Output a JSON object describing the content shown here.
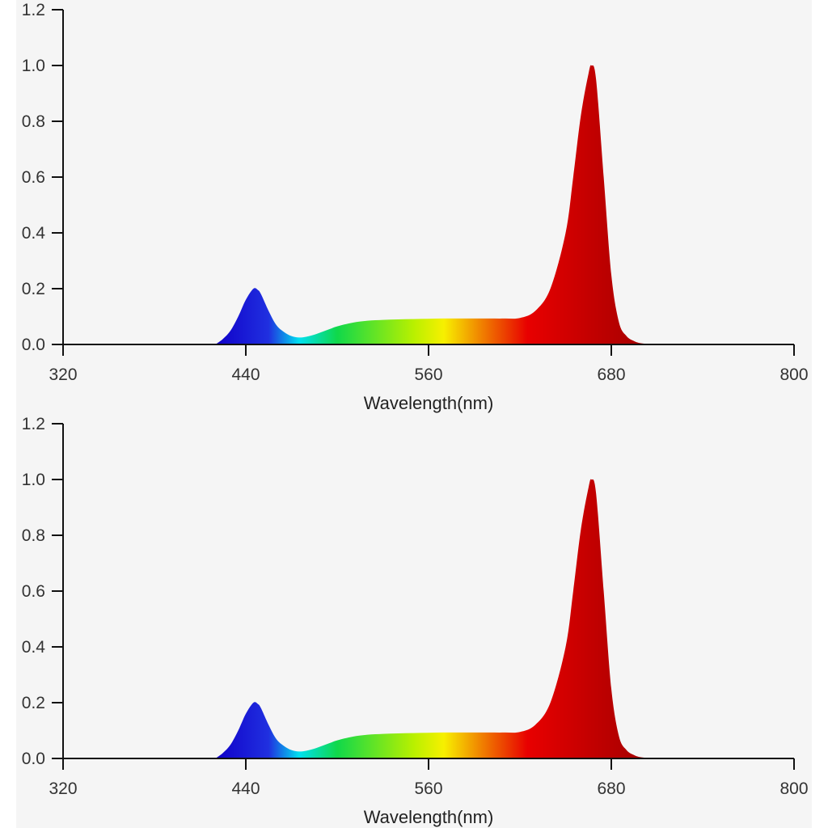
{
  "chart_data": [
    {
      "type": "area",
      "title": "",
      "xlabel": "Wavelength(nm)",
      "ylabel": "",
      "xlim": [
        320,
        800
      ],
      "ylim": [
        0,
        1.2
      ],
      "xticks": [
        "320",
        "440",
        "560",
        "680",
        "800"
      ],
      "yticks": [
        "0.0",
        "0.2",
        "0.4",
        "0.6",
        "0.8",
        "1.0",
        "1.2"
      ],
      "grid": false,
      "legend": "none",
      "series": [
        {
          "x": [
            420,
            425,
            430,
            435,
            440,
            445,
            448,
            450,
            455,
            460,
            465,
            470,
            475,
            480,
            485,
            490,
            495,
            500,
            510,
            520,
            530,
            540,
            550,
            560,
            570,
            580,
            590,
            600,
            610,
            620,
            630,
            640,
            650,
            655,
            660,
            665,
            667,
            670,
            675,
            680,
            685,
            690,
            695,
            700,
            710
          ],
          "y": [
            0.0,
            0.02,
            0.05,
            0.1,
            0.16,
            0.2,
            0.195,
            0.18,
            0.12,
            0.07,
            0.045,
            0.03,
            0.025,
            0.028,
            0.035,
            0.045,
            0.055,
            0.065,
            0.078,
            0.085,
            0.088,
            0.09,
            0.091,
            0.092,
            0.093,
            0.093,
            0.093,
            0.093,
            0.093,
            0.095,
            0.12,
            0.2,
            0.4,
            0.6,
            0.82,
            0.97,
            1.0,
            0.95,
            0.6,
            0.25,
            0.08,
            0.03,
            0.012,
            0.004,
            0.0
          ]
        }
      ],
      "colors": {
        "fill_stops": [
          "#1000c8",
          "#2030e0",
          "#00e0f0",
          "#10d84a",
          "#b8f000",
          "#f7f000",
          "#f08000",
          "#e80000",
          "#c00000",
          "#a00000"
        ]
      }
    },
    {
      "type": "area",
      "title": "",
      "xlabel": "Wavelength(nm)",
      "ylabel": "",
      "xlim": [
        320,
        800
      ],
      "ylim": [
        0,
        1.2
      ],
      "xticks": [
        "320",
        "440",
        "560",
        "680",
        "800"
      ],
      "yticks": [
        "0.0",
        "0.2",
        "0.4",
        "0.6",
        "0.8",
        "1.0",
        "1.2"
      ],
      "grid": false,
      "legend": "none",
      "series": [
        {
          "x": [
            420,
            425,
            430,
            435,
            440,
            445,
            448,
            450,
            455,
            460,
            465,
            470,
            475,
            480,
            485,
            490,
            495,
            500,
            510,
            520,
            530,
            540,
            550,
            560,
            570,
            580,
            590,
            600,
            610,
            620,
            630,
            640,
            650,
            655,
            660,
            665,
            667,
            670,
            675,
            680,
            685,
            690,
            695,
            700,
            710
          ],
          "y": [
            0.0,
            0.02,
            0.05,
            0.1,
            0.16,
            0.2,
            0.195,
            0.18,
            0.12,
            0.07,
            0.045,
            0.03,
            0.025,
            0.028,
            0.035,
            0.045,
            0.055,
            0.065,
            0.078,
            0.085,
            0.088,
            0.09,
            0.091,
            0.092,
            0.093,
            0.093,
            0.093,
            0.093,
            0.093,
            0.095,
            0.12,
            0.2,
            0.4,
            0.6,
            0.82,
            0.97,
            1.0,
            0.95,
            0.6,
            0.25,
            0.08,
            0.03,
            0.012,
            0.004,
            0.0
          ]
        }
      ],
      "colors": {
        "fill_stops": [
          "#1000c8",
          "#2030e0",
          "#00e0f0",
          "#10d84a",
          "#b8f000",
          "#f7f000",
          "#f08000",
          "#e80000",
          "#c00000",
          "#a00000"
        ]
      }
    }
  ]
}
